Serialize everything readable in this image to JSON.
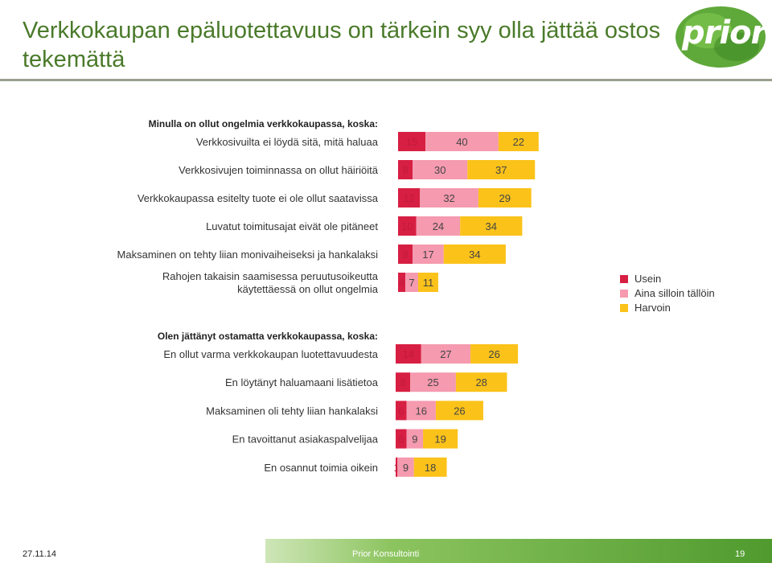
{
  "header": {
    "title": "Verkkokaupan epäluotettavuus on tärkein syy olla jättää ostos tekemättä",
    "logo_text": "prior"
  },
  "footer": {
    "date": "27.11.14",
    "organization": "Prior Konsultointi",
    "page_number": "19"
  },
  "colors": {
    "usein": "#d71f43",
    "aina_silloin_tallöin": "#f59aaf",
    "harvoin": "#fbc21a",
    "title": "#4a7a2a"
  },
  "chart_data": {
    "type": "bar",
    "orientation": "horizontal",
    "stacked": true,
    "legend": {
      "position": "right",
      "entries": [
        "Usein",
        "Aina silloin tällöin",
        "Harvoin"
      ]
    },
    "groups": [
      {
        "heading": "Minulla on ollut ongelmia verkkokaupassa, koska:",
        "categories": [
          "Verkkosivuilta ei löydä sitä, mitä haluaa",
          "Verkkosivujen toiminnassa on ollut häiriöitä",
          "Verkkokaupassa esitelty tuote ei ole ollut saatavissa",
          "Luvatut toimitusajat eivät ole pitäneet",
          "Maksaminen on tehty liian monivaiheiseksi ja hankalaksi",
          "Rahojen takaisin saamisessa peruutusoikeutta käytettäessä on ollut ongelmia"
        ],
        "series": [
          {
            "name": "Usein",
            "values": [
              15,
              8,
              12,
              10,
              8,
              4
            ]
          },
          {
            "name": "Aina silloin tällöin",
            "values": [
              40,
              30,
              32,
              24,
              17,
              7
            ]
          },
          {
            "name": "Harvoin",
            "values": [
              22,
              37,
              29,
              34,
              34,
              11
            ]
          }
        ]
      },
      {
        "heading": "Olen jättänyt ostamatta verkkokaupassa, koska:",
        "categories": [
          "En ollut varma verkkokaupan luotettavuudesta",
          "En löytänyt haluamaani lisätietoa",
          "Maksaminen oli tehty liian hankalaksi",
          "En tavoittanut asiakaspalvelijaa",
          "En osannut toimia oikein"
        ],
        "series": [
          {
            "name": "Usein",
            "values": [
              14,
              8,
              6,
              6,
              1
            ]
          },
          {
            "name": "Aina silloin tällöin",
            "values": [
              27,
              25,
              16,
              9,
              9
            ]
          },
          {
            "name": "Harvoin",
            "values": [
              26,
              28,
              26,
              19,
              18
            ]
          }
        ]
      }
    ]
  }
}
